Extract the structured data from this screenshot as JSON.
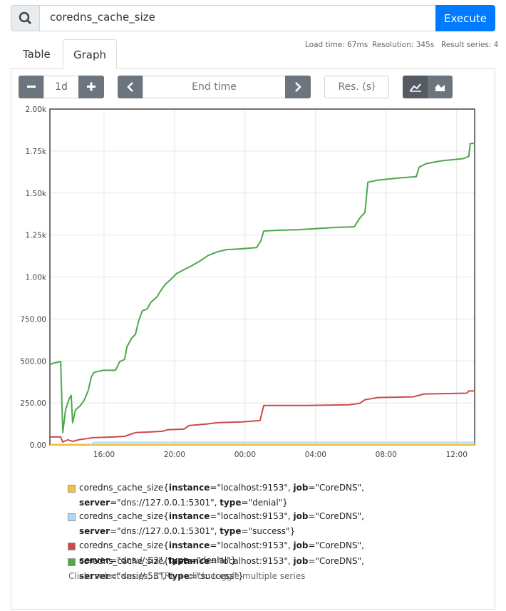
{
  "search": {
    "query": "coredns_cache_size",
    "execute": "Execute"
  },
  "tabs": [
    "Table",
    "Graph"
  ],
  "stats": [
    "Load time: 67ms",
    "Resolution: 345s",
    "Result series: 4"
  ],
  "controls": {
    "range": "1d",
    "end_time": "End time",
    "resolution": "Res. (s)"
  },
  "chart_data": {
    "type": "line",
    "xlim": [
      12.93,
      37.02
    ],
    "xticks": [
      {
        "value": 16,
        "label": "16:00"
      },
      {
        "value": 20,
        "label": "20:00"
      },
      {
        "value": 24,
        "label": "00:00"
      },
      {
        "value": 28,
        "label": "04:00"
      },
      {
        "value": 32,
        "label": "08:00"
      },
      {
        "value": 36,
        "label": "12:00"
      }
    ],
    "ylim": [
      0,
      2000
    ],
    "yticks": [
      {
        "value": 0,
        "label": "0.00"
      },
      {
        "value": 250,
        "label": "250.00"
      },
      {
        "value": 500,
        "label": "500.00"
      },
      {
        "value": 750,
        "label": "750.00"
      },
      {
        "value": 1000,
        "label": "1.00k"
      },
      {
        "value": 1250,
        "label": "1.25k"
      },
      {
        "value": 1500,
        "label": "1.50k"
      },
      {
        "value": 1750,
        "label": "1.75k"
      },
      {
        "value": 2000,
        "label": "2.00k"
      }
    ],
    "grid": true,
    "series": [
      {
        "name": "coredns_cache_size{instance=\"localhost:9153\", job=\"CoreDNS\", server=\"dns://127.0.0.1:5301\", type=\"denial\"}",
        "color": "#edc240",
        "x": [
          12.93,
          37.02
        ],
        "values": [
          2,
          2
        ]
      },
      {
        "name": "coredns_cache_size{instance=\"localhost:9153\", job=\"CoreDNS\", server=\"dns://127.0.0.1:5301\", type=\"success\"}",
        "color": "#afd8f8",
        "x": [
          15.27,
          15.43,
          37.02
        ],
        "values": [
          0,
          15,
          15
        ]
      },
      {
        "name": "coredns_cache_size{instance=\"localhost:9153\", job=\"CoreDNS\", server=\"dns://:53\", type=\"denial\"}",
        "color": "#cb4b4b",
        "x": [
          12.93,
          13.54,
          13.66,
          13.94,
          14.22,
          14.55,
          15.36,
          16.57,
          17.17,
          17.78,
          18.59,
          19.32,
          19.6,
          20.53,
          20.81,
          21.82,
          22.43,
          23.84,
          24.85,
          25.06,
          27.48,
          29.91,
          30.51,
          30.8,
          31.52,
          33.54,
          34.15,
          36.58,
          36.69,
          37.02
        ],
        "values": [
          47,
          47,
          17,
          30,
          21,
          30,
          43,
          47,
          51,
          73,
          77,
          81,
          90,
          94,
          115,
          124,
          132,
          137,
          145,
          235,
          235,
          239,
          248,
          269,
          282,
          286,
          303,
          308,
          321,
          321
        ]
      },
      {
        "name": "coredns_cache_size{instance=\"localhost:9153\", job=\"CoreDNS\", server=\"dns://:53\", type=\"success\"}",
        "color": "#4da74d",
        "x": [
          12.93,
          13.13,
          13.54,
          13.66,
          13.82,
          14.02,
          14.14,
          14.22,
          14.38,
          14.63,
          14.87,
          15.11,
          15.27,
          15.43,
          15.96,
          16.65,
          16.89,
          17.17,
          17.3,
          17.58,
          17.78,
          17.98,
          18.18,
          18.43,
          18.67,
          18.99,
          19.2,
          19.48,
          19.8,
          20.12,
          20.53,
          20.93,
          21.42,
          21.9,
          22.43,
          22.95,
          23.64,
          24.65,
          24.89,
          25.06,
          25.86,
          27.08,
          29.1,
          30.19,
          30.51,
          30.8,
          30.96,
          31.52,
          32.74,
          33.71,
          33.87,
          34.27,
          35.16,
          36.37,
          36.69,
          36.77,
          37.02
        ],
        "values": [
          478,
          487,
          496,
          73,
          209,
          274,
          295,
          132,
          209,
          231,
          265,
          325,
          402,
          432,
          444,
          444,
          496,
          509,
          585,
          637,
          658,
          744,
          799,
          808,
          850,
          880,
          915,
          957,
          987,
          1021,
          1043,
          1064,
          1094,
          1128,
          1150,
          1163,
          1167,
          1175,
          1214,
          1274,
          1278,
          1282,
          1295,
          1299,
          1351,
          1385,
          1564,
          1577,
          1590,
          1598,
          1654,
          1675,
          1692,
          1705,
          1718,
          1795,
          1795
        ]
      }
    ]
  },
  "hint": "Click: select series, CTRL + click: toggle multiple series"
}
